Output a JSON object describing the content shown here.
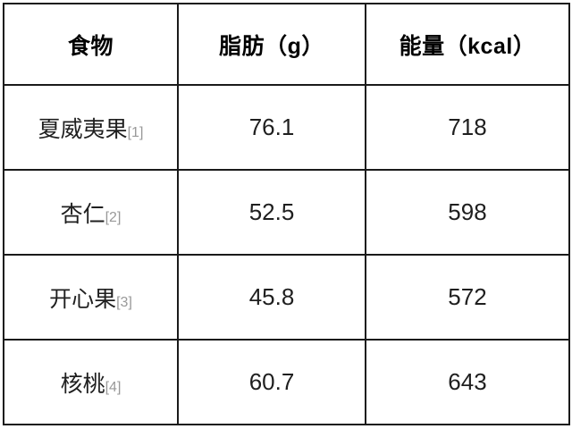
{
  "colors": {
    "border": "#1a1a1a",
    "header_text": "#000000",
    "body_text": "#1f1f1f",
    "reference_text": "#999999",
    "background": "#ffffff"
  },
  "chart_data": {
    "type": "table",
    "title": "",
    "columns": [
      "食物",
      "脂肪（g）",
      "能量（kcal）"
    ],
    "rows": [
      {
        "food": "夏威夷果",
        "ref": "[1]",
        "fat_g": 76.1,
        "energy_kcal": 718
      },
      {
        "food": "杏仁",
        "ref": "[2]",
        "fat_g": 52.5,
        "energy_kcal": 598
      },
      {
        "food": "开心果",
        "ref": "[3]",
        "fat_g": 45.8,
        "energy_kcal": 572
      },
      {
        "food": "核桃",
        "ref": "[4]",
        "fat_g": 60.7,
        "energy_kcal": 643
      }
    ]
  }
}
